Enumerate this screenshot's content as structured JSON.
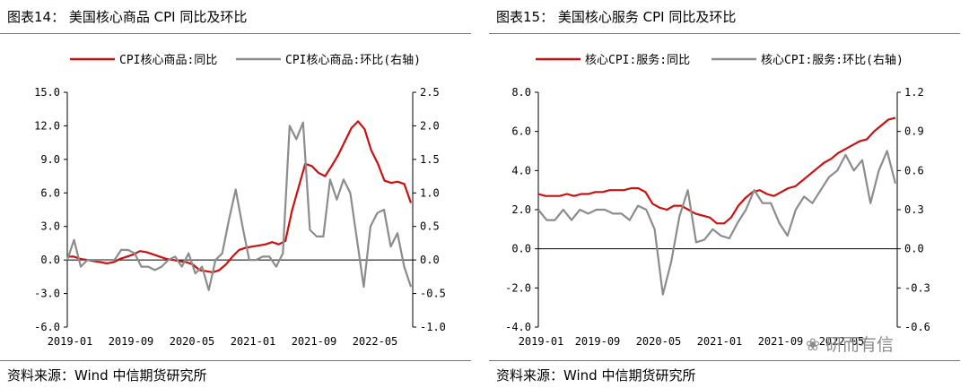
{
  "watermark": "研而有信",
  "chart_data": [
    {
      "type": "line",
      "title": "图表14： 美国核心商品 CPI 同比及环比",
      "source": "资料来源：Wind 中信期货研究所",
      "xlabel": "",
      "ylabel": "",
      "y2label": "",
      "x_tick_labels": [
        "2019-01",
        "2019-09",
        "2020-05",
        "2021-01",
        "2021-09",
        "2022-05"
      ],
      "ylim": [
        -6,
        15
      ],
      "yticks": [
        "-6.0",
        "-3.0",
        "0.0",
        "3.0",
        "6.0",
        "9.0",
        "12.0",
        "15.0"
      ],
      "y2lim": [
        -1,
        2.5
      ],
      "y2ticks": [
        "-1.0",
        "-0.5",
        "0.0",
        "0.5",
        "1.0",
        "1.5",
        "2.0",
        "2.5"
      ],
      "legend_position": "top",
      "series": [
        {
          "name": "CPI核心商品:同比",
          "axis": "left",
          "color": "#cc1010",
          "values": [
            0.3,
            0.3,
            0.1,
            0.0,
            -0.1,
            -0.2,
            -0.3,
            -0.2,
            0.1,
            0.3,
            0.5,
            0.8,
            0.7,
            0.5,
            0.3,
            0.1,
            0.0,
            -0.1,
            -0.2,
            -0.4,
            -0.9,
            -1.0,
            -1.1,
            -0.9,
            -0.4,
            0.3,
            0.9,
            1.1,
            1.2,
            1.3,
            1.4,
            1.6,
            1.4,
            1.7,
            4.4,
            6.5,
            8.6,
            8.4,
            7.8,
            7.5,
            8.4,
            9.4,
            10.6,
            11.8,
            12.4,
            11.7,
            9.8,
            8.6,
            7.1,
            6.9,
            7.0,
            6.8,
            5.1
          ]
        },
        {
          "name": "CPI核心商品:环比(右轴)",
          "axis": "right",
          "color": "#8c8c8c",
          "values": [
            0.0,
            0.3,
            -0.1,
            0.0,
            0.0,
            0.0,
            0.0,
            0.0,
            0.15,
            0.15,
            0.1,
            -0.1,
            -0.1,
            -0.15,
            -0.1,
            0.0,
            0.05,
            -0.1,
            0.1,
            -0.2,
            -0.1,
            -0.45,
            0.0,
            0.1,
            0.6,
            1.05,
            0.5,
            0.0,
            0.0,
            0.05,
            0.05,
            -0.1,
            0.1,
            2.0,
            1.8,
            2.05,
            0.45,
            0.35,
            0.35,
            1.2,
            0.9,
            1.2,
            1.0,
            0.3,
            -0.4,
            0.5,
            0.7,
            0.75,
            0.2,
            0.4,
            -0.1,
            -0.4
          ]
        }
      ]
    },
    {
      "type": "line",
      "title": "图表15： 美国核心服务 CPI 同比及环比",
      "source": "资料来源：Wind 中信期货研究所",
      "xlabel": "",
      "ylabel": "",
      "y2label": "",
      "x_tick_labels": [
        "2019-01",
        "2019-09",
        "2020-05",
        "2021-01",
        "2021-09",
        "2022-05"
      ],
      "ylim": [
        -4,
        8
      ],
      "yticks": [
        "-4.0",
        "-2.0",
        "0.0",
        "2.0",
        "4.0",
        "6.0",
        "8.0"
      ],
      "y2lim": [
        -0.6,
        1.2
      ],
      "y2ticks": [
        "-0.6",
        "-0.3",
        "0.0",
        "0.3",
        "0.6",
        "0.9",
        "1.2"
      ],
      "legend_position": "top",
      "series": [
        {
          "name": "核心CPI:服务:同比",
          "axis": "left",
          "color": "#cc1010",
          "values": [
            2.8,
            2.7,
            2.7,
            2.7,
            2.8,
            2.7,
            2.8,
            2.8,
            2.9,
            2.9,
            3.0,
            3.0,
            3.0,
            3.1,
            3.1,
            2.9,
            2.3,
            2.1,
            2.0,
            2.2,
            2.2,
            2.0,
            1.8,
            1.7,
            1.6,
            1.3,
            1.3,
            1.6,
            2.2,
            2.6,
            2.9,
            3.0,
            2.8,
            2.7,
            2.9,
            3.1,
            3.2,
            3.5,
            3.8,
            4.1,
            4.4,
            4.6,
            4.9,
            5.1,
            5.3,
            5.5,
            5.6,
            6.0,
            6.3,
            6.6,
            6.7
          ]
        },
        {
          "name": "核心CPI:服务:环比(右轴)",
          "axis": "right",
          "color": "#8c8c8c",
          "values": [
            0.3,
            0.22,
            0.22,
            0.3,
            0.22,
            0.3,
            0.27,
            0.3,
            0.3,
            0.27,
            0.27,
            0.22,
            0.33,
            0.3,
            0.15,
            -0.35,
            -0.1,
            0.25,
            0.45,
            0.05,
            0.07,
            0.15,
            0.1,
            0.08,
            0.2,
            0.3,
            0.45,
            0.35,
            0.35,
            0.2,
            0.1,
            0.3,
            0.4,
            0.35,
            0.45,
            0.55,
            0.6,
            0.72,
            0.6,
            0.68,
            0.35,
            0.6,
            0.75,
            0.5
          ]
        }
      ]
    }
  ]
}
